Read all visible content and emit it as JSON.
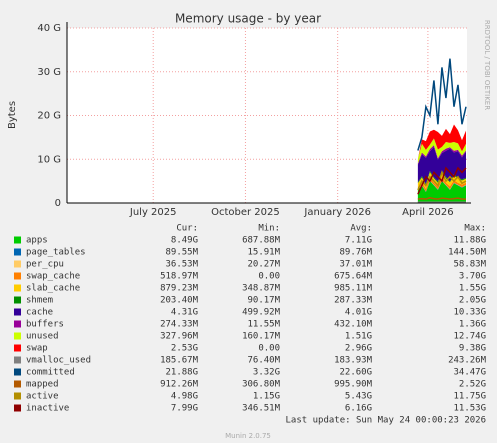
{
  "chart_data": {
    "type": "area",
    "title": "Memory usage - by year",
    "y_label": "Bytes",
    "side_text": "RRDTOOL / TOBI OETIKER",
    "ylim": [
      0,
      40000000000
    ],
    "yticks": [
      {
        "value": 0,
        "label": "0"
      },
      {
        "value": 10000000000,
        "label": "10 G"
      },
      {
        "value": 20000000000,
        "label": "20 G"
      },
      {
        "value": 30000000000,
        "label": "30 G"
      },
      {
        "value": 40000000000,
        "label": "40 G"
      }
    ],
    "xlim": [
      "2025-04-06",
      "2026-05-10"
    ],
    "xticks": [
      {
        "value": "2025-07-01",
        "label": "July 2025"
      },
      {
        "value": "2025-10-01",
        "label": "October 2025"
      },
      {
        "value": "2026-01-01",
        "label": "January 2026"
      },
      {
        "value": "2026-04-01",
        "label": "April 2026"
      }
    ],
    "grid": true,
    "x": [
      "2026-03-22",
      "2026-03-26",
      "2026-03-30",
      "2026-04-03",
      "2026-04-07",
      "2026-04-11",
      "2026-04-15",
      "2026-04-19",
      "2026-04-23",
      "2026-04-27",
      "2026-05-01",
      "2026-05-05",
      "2026-05-09"
    ],
    "stat_headers": [
      "Cur:",
      "Min:",
      "Avg:",
      "Max:"
    ],
    "series": [
      {
        "name": "apps",
        "color": "#00cc00",
        "draw": "stack",
        "stats": [
          "8.49G",
          "687.88M",
          "7.11G",
          "11.88G"
        ],
        "values": [
          3000000000.0,
          4000000000.0,
          2500000000.0,
          5000000000.0,
          4000000000.0,
          3000000000.0,
          5000000000.0,
          4000000000.0,
          3000000000.0,
          4500000000.0,
          4000000000.0,
          3500000000.0,
          4000000000.0
        ]
      },
      {
        "name": "page_tables",
        "color": "#0066b3",
        "draw": "stack",
        "stats": [
          "89.55M",
          "15.91M",
          "89.76M",
          "144.50M"
        ],
        "values": [
          90000000.0,
          90000000.0,
          90000000.0,
          90000000.0,
          90000000.0,
          90000000.0,
          90000000.0,
          90000000.0,
          90000000.0,
          90000000.0,
          90000000.0,
          90000000.0,
          90000000.0
        ]
      },
      {
        "name": "per_cpu",
        "color": "#ffcc66",
        "draw": "stack",
        "stats": [
          "36.53M",
          "20.27M",
          "37.01M",
          "58.83M"
        ],
        "values": [
          40000000.0,
          40000000.0,
          40000000.0,
          40000000.0,
          40000000.0,
          40000000.0,
          40000000.0,
          40000000.0,
          40000000.0,
          40000000.0,
          40000000.0,
          40000000.0,
          40000000.0
        ]
      },
      {
        "name": "swap_cache",
        "color": "#ff8000",
        "draw": "stack",
        "stats": [
          "518.97M",
          "0.00",
          "675.64M",
          "3.70G"
        ],
        "values": [
          500000000.0,
          700000000.0,
          600000000.0,
          800000000.0,
          500000000.0,
          600000000.0,
          900000000.0,
          500000000.0,
          700000000.0,
          600000000.0,
          500000000.0,
          600000000.0,
          500000000.0
        ]
      },
      {
        "name": "slab_cache",
        "color": "#ffcc00",
        "draw": "stack",
        "stats": [
          "879.23M",
          "348.87M",
          "985.11M",
          "1.55G"
        ],
        "values": [
          900000000.0,
          1000000000.0,
          900000000.0,
          1100000000.0,
          1000000000.0,
          900000000.0,
          1200000000.0,
          1000000000.0,
          900000000.0,
          1000000000.0,
          1000000000.0,
          900000000.0,
          900000000.0
        ]
      },
      {
        "name": "shmem",
        "color": "#008f00",
        "draw": "stack",
        "stats": [
          "203.40M",
          "90.17M",
          "287.33M",
          "2.05G"
        ],
        "values": [
          200000000.0,
          300000000.0,
          200000000.0,
          300000000.0,
          200000000.0,
          300000000.0,
          200000000.0,
          300000000.0,
          200000000.0,
          300000000.0,
          200000000.0,
          300000000.0,
          200000000.0
        ]
      },
      {
        "name": "cache",
        "color": "#330099",
        "draw": "stack",
        "stats": [
          "4.31G",
          "499.92M",
          "4.01G",
          "10.33G"
        ],
        "values": [
          4000000000.0,
          5000000000.0,
          6000000000.0,
          4500000000.0,
          7000000000.0,
          5000000000.0,
          4000000000.0,
          6000000000.0,
          7500000000.0,
          5000000000.0,
          6000000000.0,
          5000000000.0,
          6000000000.0
        ]
      },
      {
        "name": "buffers",
        "color": "#990099",
        "draw": "stack",
        "stats": [
          "274.33M",
          "11.55M",
          "432.10M",
          "1.36G"
        ],
        "values": [
          300000000.0,
          400000000.0,
          300000000.0,
          500000000.0,
          400000000.0,
          300000000.0,
          400000000.0,
          500000000.0,
          300000000.0,
          400000000.0,
          300000000.0,
          400000000.0,
          300000000.0
        ]
      },
      {
        "name": "unused",
        "color": "#ccff00",
        "draw": "stack",
        "stats": [
          "327.96M",
          "160.17M",
          "1.51G",
          "12.74G"
        ],
        "values": [
          1000000000.0,
          2000000000.0,
          1500000000.0,
          1000000000.0,
          1500000000.0,
          2000000000.0,
          1000000000.0,
          1500000000.0,
          1000000000.0,
          2000000000.0,
          1500000000.0,
          1000000000.0,
          1500000000.0
        ]
      },
      {
        "name": "swap",
        "color": "#ff0000",
        "draw": "stack",
        "stats": [
          "2.53G",
          "0.00",
          "2.96G",
          "9.38G"
        ],
        "values": [
          0,
          1000000000.0,
          2000000000.0,
          3000000000.0,
          2000000000.0,
          4000000000.0,
          2500000000.0,
          3000000000.0,
          2000000000.0,
          4000000000.0,
          3000000000.0,
          2500000000.0,
          3000000000.0
        ]
      },
      {
        "name": "vmalloc_used",
        "color": "#808080",
        "draw": "line",
        "stats": [
          "185.67M",
          "76.40M",
          "183.93M",
          "243.26M"
        ],
        "values": [
          180000000.0,
          180000000.0,
          180000000.0,
          180000000.0,
          180000000.0,
          180000000.0,
          180000000.0,
          180000000.0,
          180000000.0,
          180000000.0,
          180000000.0,
          180000000.0,
          180000000.0
        ]
      },
      {
        "name": "committed",
        "color": "#00487d",
        "draw": "line",
        "stats": [
          "21.88G",
          "3.32G",
          "22.60G",
          "34.47G"
        ],
        "values": [
          12000000000.0,
          15000000000.0,
          22000000000.0,
          20000000000.0,
          28000000000.0,
          18000000000.0,
          31000000000.0,
          24000000000.0,
          33000000000.0,
          22000000000.0,
          27000000000.0,
          18000000000.0,
          22000000000.0
        ]
      },
      {
        "name": "mapped",
        "color": "#b35a00",
        "draw": "line",
        "stats": [
          "912.26M",
          "306.80M",
          "995.90M",
          "2.52G"
        ],
        "values": [
          900000000.0,
          1000000000.0,
          900000000.0,
          1200000000.0,
          1000000000.0,
          900000000.0,
          1100000000.0,
          1000000000.0,
          900000000.0,
          1000000000.0,
          1100000000.0,
          900000000.0,
          900000000.0
        ]
      },
      {
        "name": "active",
        "color": "#b38f00",
        "draw": "line",
        "stats": [
          "4.98G",
          "1.15G",
          "5.43G",
          "11.75G"
        ],
        "values": [
          3000000000.0,
          5000000000.0,
          4000000000.0,
          6000000000.0,
          5000000000.0,
          4000000000.0,
          7000000000.0,
          5000000000.0,
          6000000000.0,
          5000000000.0,
          6000000000.0,
          4500000000.0,
          5000000000.0
        ]
      },
      {
        "name": "inactive",
        "color": "#8f0000",
        "draw": "line",
        "stats": [
          "7.99G",
          "346.51M",
          "6.16G",
          "11.53G"
        ],
        "values": [
          2000000000.0,
          4000000000.0,
          6000000000.0,
          5000000000.0,
          7000000000.0,
          6000000000.0,
          5000000000.0,
          8000000000.0,
          7000000000.0,
          6000000000.0,
          8000000000.0,
          7000000000.0,
          8000000000.0
        ]
      }
    ],
    "last_update": "Last update: Sun May 24 00:00:23 2026",
    "footer": "Munin 2.0.75"
  }
}
